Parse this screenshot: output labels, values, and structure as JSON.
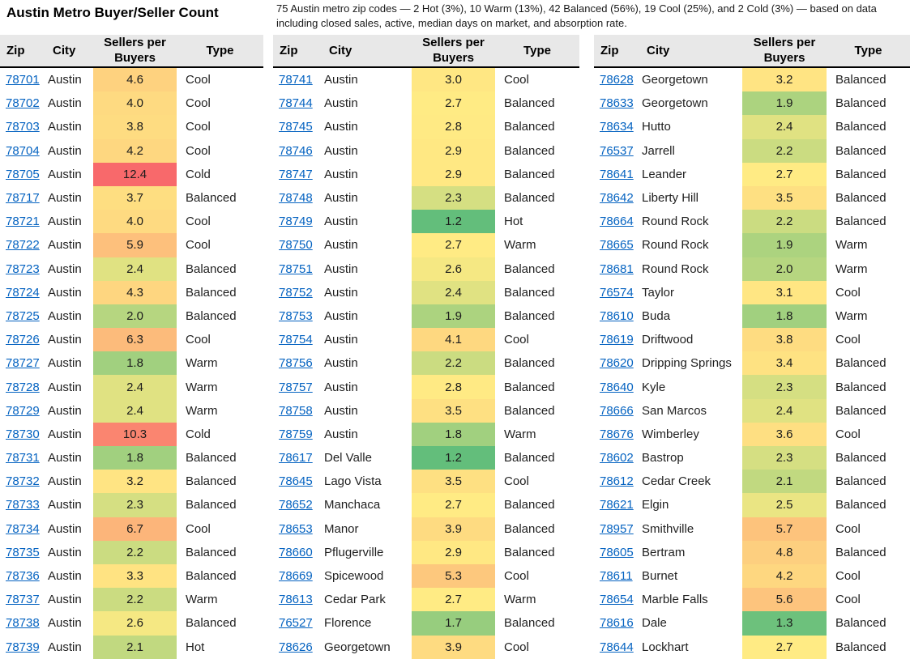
{
  "title": "Austin Metro Buyer/Seller Count",
  "note": "75 Austin metro zip codes — 2 Hot (3%), 10 Warm (13%), 42 Balanced (56%), 19 Cool (25%), and 2 Cold (3%) — based on data including closed sales, active, median days on market, and absorption rate.",
  "columns": [
    "Zip",
    "City",
    "Sellers per Buyers",
    "Type"
  ],
  "colors": {
    "header_bg": "#E8E8E8",
    "link_blue": "#0563C1",
    "scale_min_green": "#63BE7B",
    "scale_mid_yellow": "#FFEB84",
    "scale_max_red": "#F8696B"
  },
  "tables": [
    {
      "rows": [
        [
          "78701",
          "Austin",
          4.6,
          "Cool"
        ],
        [
          "78702",
          "Austin",
          4.0,
          "Cool"
        ],
        [
          "78703",
          "Austin",
          3.8,
          "Cool"
        ],
        [
          "78704",
          "Austin",
          4.2,
          "Cool"
        ],
        [
          "78705",
          "Austin",
          12.4,
          "Cold"
        ],
        [
          "78717",
          "Austin",
          3.7,
          "Balanced"
        ],
        [
          "78721",
          "Austin",
          4.0,
          "Cool"
        ],
        [
          "78722",
          "Austin",
          5.9,
          "Cool"
        ],
        [
          "78723",
          "Austin",
          2.4,
          "Balanced"
        ],
        [
          "78724",
          "Austin",
          4.3,
          "Balanced"
        ],
        [
          "78725",
          "Austin",
          2.0,
          "Balanced"
        ],
        [
          "78726",
          "Austin",
          6.3,
          "Cool"
        ],
        [
          "78727",
          "Austin",
          1.8,
          "Warm"
        ],
        [
          "78728",
          "Austin",
          2.4,
          "Warm"
        ],
        [
          "78729",
          "Austin",
          2.4,
          "Warm"
        ],
        [
          "78730",
          "Austin",
          10.3,
          "Cold"
        ],
        [
          "78731",
          "Austin",
          1.8,
          "Balanced"
        ],
        [
          "78732",
          "Austin",
          3.2,
          "Balanced"
        ],
        [
          "78733",
          "Austin",
          2.3,
          "Balanced"
        ],
        [
          "78734",
          "Austin",
          6.7,
          "Cool"
        ],
        [
          "78735",
          "Austin",
          2.2,
          "Balanced"
        ],
        [
          "78736",
          "Austin",
          3.3,
          "Balanced"
        ],
        [
          "78737",
          "Austin",
          2.2,
          "Warm"
        ],
        [
          "78738",
          "Austin",
          2.6,
          "Balanced"
        ],
        [
          "78739",
          "Austin",
          2.1,
          "Hot"
        ]
      ]
    },
    {
      "rows": [
        [
          "78741",
          "Austin",
          3.0,
          "Cool"
        ],
        [
          "78744",
          "Austin",
          2.7,
          "Balanced"
        ],
        [
          "78745",
          "Austin",
          2.8,
          "Balanced"
        ],
        [
          "78746",
          "Austin",
          2.9,
          "Balanced"
        ],
        [
          "78747",
          "Austin",
          2.9,
          "Balanced"
        ],
        [
          "78748",
          "Austin",
          2.3,
          "Balanced"
        ],
        [
          "78749",
          "Austin",
          1.2,
          "Hot"
        ],
        [
          "78750",
          "Austin",
          2.7,
          "Warm"
        ],
        [
          "78751",
          "Austin",
          2.6,
          "Balanced"
        ],
        [
          "78752",
          "Austin",
          2.4,
          "Balanced"
        ],
        [
          "78753",
          "Austin",
          1.9,
          "Balanced"
        ],
        [
          "78754",
          "Austin",
          4.1,
          "Cool"
        ],
        [
          "78756",
          "Austin",
          2.2,
          "Balanced"
        ],
        [
          "78757",
          "Austin",
          2.8,
          "Balanced"
        ],
        [
          "78758",
          "Austin",
          3.5,
          "Balanced"
        ],
        [
          "78759",
          "Austin",
          1.8,
          "Warm"
        ],
        [
          "78617",
          "Del Valle",
          1.2,
          "Balanced"
        ],
        [
          "78645",
          "Lago Vista",
          3.5,
          "Cool"
        ],
        [
          "78652",
          "Manchaca",
          2.7,
          "Balanced"
        ],
        [
          "78653",
          "Manor",
          3.9,
          "Balanced"
        ],
        [
          "78660",
          "Pflugerville",
          2.9,
          "Balanced"
        ],
        [
          "78669",
          "Spicewood",
          5.3,
          "Cool"
        ],
        [
          "78613",
          "Cedar Park",
          2.7,
          "Warm"
        ],
        [
          "76527",
          "Florence",
          1.7,
          "Balanced"
        ],
        [
          "78626",
          "Georgetown",
          3.9,
          "Cool"
        ]
      ]
    },
    {
      "rows": [
        [
          "78628",
          "Georgetown",
          3.2,
          "Balanced"
        ],
        [
          "78633",
          "Georgetown",
          1.9,
          "Balanced"
        ],
        [
          "78634",
          "Hutto",
          2.4,
          "Balanced"
        ],
        [
          "76537",
          "Jarrell",
          2.2,
          "Balanced"
        ],
        [
          "78641",
          "Leander",
          2.7,
          "Balanced"
        ],
        [
          "78642",
          "Liberty Hill",
          3.5,
          "Balanced"
        ],
        [
          "78664",
          "Round Rock",
          2.2,
          "Balanced"
        ],
        [
          "78665",
          "Round Rock",
          1.9,
          "Warm"
        ],
        [
          "78681",
          "Round Rock",
          2.0,
          "Warm"
        ],
        [
          "76574",
          "Taylor",
          3.1,
          "Cool"
        ],
        [
          "78610",
          "Buda",
          1.8,
          "Warm"
        ],
        [
          "78619",
          "Driftwood",
          3.8,
          "Cool"
        ],
        [
          "78620",
          "Dripping Springs",
          3.4,
          "Balanced"
        ],
        [
          "78640",
          "Kyle",
          2.3,
          "Balanced"
        ],
        [
          "78666",
          "San Marcos",
          2.4,
          "Balanced"
        ],
        [
          "78676",
          "Wimberley",
          3.6,
          "Cool"
        ],
        [
          "78602",
          "Bastrop",
          2.3,
          "Balanced"
        ],
        [
          "78612",
          "Cedar Creek",
          2.1,
          "Balanced"
        ],
        [
          "78621",
          "Elgin",
          2.5,
          "Balanced"
        ],
        [
          "78957",
          "Smithville",
          5.7,
          "Cool"
        ],
        [
          "78605",
          "Bertram",
          4.8,
          "Balanced"
        ],
        [
          "78611",
          "Burnet",
          4.2,
          "Cool"
        ],
        [
          "78654",
          "Marble Falls",
          5.6,
          "Cool"
        ],
        [
          "78616",
          "Dale",
          1.3,
          "Balanced"
        ],
        [
          "78644",
          "Lockhart",
          2.7,
          "Balanced"
        ]
      ]
    }
  ]
}
